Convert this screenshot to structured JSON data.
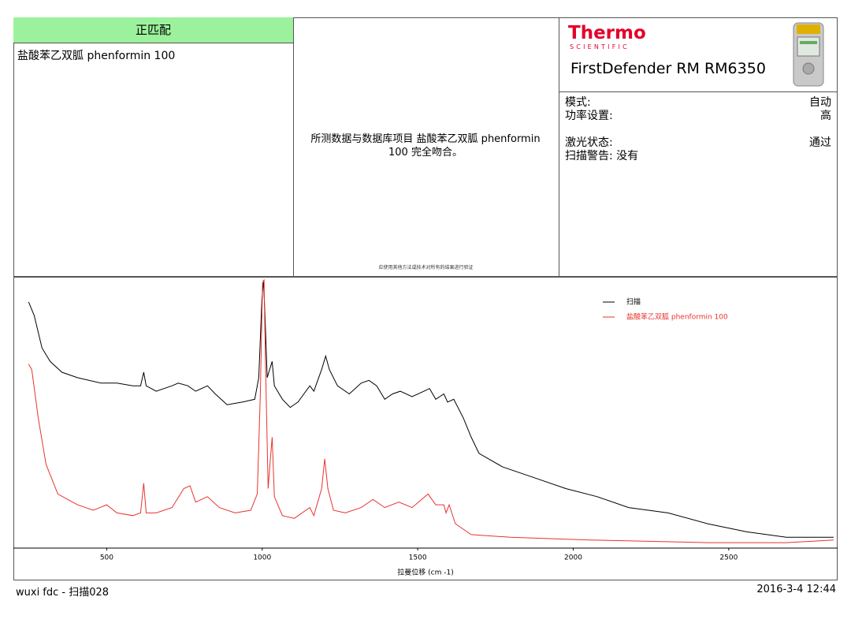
{
  "match_status": "正匹配",
  "match_name": "盐酸苯乙双胍 phenformin 100",
  "message": "所测数据与数据库项目 盐酸苯乙双胍 phenformin 100 完全吻合。",
  "note": "应使用其他方法或技术对所有的结果进行验证",
  "brand": {
    "name": "Thermo",
    "sub": "SCIENTIFIC"
  },
  "device": "FirstDefender RM RM6350",
  "settings": [
    {
      "label": "模式:",
      "value": "自动"
    },
    {
      "label": "功率设置:",
      "value": "高"
    },
    {
      "label": "激光状态:",
      "value": "通过"
    },
    {
      "label": "扫描警告: 没有"
    }
  ],
  "chart_data": {
    "type": "line",
    "x_label": "拉曼位移 (cm -1)",
    "xlim": [
      200,
      2850
    ],
    "ylim": [
      0,
      100
    ],
    "xticks": [
      500,
      1000,
      1500,
      2000,
      2500
    ],
    "legend": "upper right",
    "series": [
      {
        "name": "扫描",
        "color": "#000000",
        "x": [
          249,
          267,
          292,
          318,
          356,
          406,
          482,
          533,
          584,
          609,
          619,
          627,
          659,
          710,
          730,
          761,
          786,
          824,
          849,
          887,
          937,
          976,
          989,
          999,
          1004,
          1009,
          1016,
          1024,
          1032,
          1039,
          1065,
          1090,
          1115,
          1153,
          1166,
          1191,
          1204,
          1216,
          1242,
          1280,
          1318,
          1343,
          1368,
          1394,
          1419,
          1444,
          1482,
          1520,
          1538,
          1558,
          1584,
          1596,
          1616,
          1647,
          1672,
          1697,
          1773,
          1875,
          1976,
          2077,
          2178,
          2305,
          2432,
          2558,
          2685,
          2837
        ],
        "values": [
          91,
          86,
          74,
          69,
          65,
          63,
          61,
          61,
          60,
          60,
          65,
          60,
          58,
          60,
          61,
          60,
          58,
          60,
          57,
          53,
          54,
          55,
          63,
          92,
          99,
          86,
          63,
          66,
          69,
          60,
          55,
          52,
          54,
          60,
          58,
          66,
          71,
          66,
          60,
          57,
          61,
          62,
          60,
          55,
          57,
          58,
          56,
          58,
          59,
          55,
          57,
          54,
          55,
          48,
          41,
          35,
          30,
          26,
          22,
          19,
          15,
          13,
          9,
          6,
          4,
          4
        ]
      },
      {
        "name": "盐酸苯乙双胍 phenformin 100",
        "color": "#e8322d",
        "x": [
          249,
          259,
          280,
          305,
          343,
          406,
          457,
          500,
          533,
          584,
          609,
          619,
          627,
          659,
          710,
          748,
          768,
          786,
          824,
          862,
          913,
          963,
          984,
          994,
          1001,
          1006,
          1011,
          1019,
          1027,
          1032,
          1039,
          1065,
          1103,
          1153,
          1166,
          1191,
          1201,
          1211,
          1229,
          1267,
          1318,
          1356,
          1394,
          1439,
          1482,
          1533,
          1558,
          1584,
          1591,
          1601,
          1621,
          1672,
          1799,
          2053,
          2432,
          2685,
          2837
        ],
        "values": [
          68,
          66,
          48,
          31,
          20,
          16,
          14,
          16,
          13,
          12,
          13,
          24,
          13,
          13,
          15,
          22,
          23,
          17,
          19,
          15,
          13,
          14,
          20,
          57,
          98,
          99,
          66,
          22,
          34,
          41,
          19,
          12,
          11,
          15,
          12,
          22,
          33,
          22,
          14,
          13,
          15,
          18,
          15,
          17,
          15,
          20,
          16,
          16,
          13,
          16,
          9,
          5,
          4,
          3,
          2,
          2,
          3
        ]
      }
    ]
  },
  "footer": {
    "left": "wuxi fdc - 扫描028",
    "right": "2016-3-4 12:44"
  }
}
